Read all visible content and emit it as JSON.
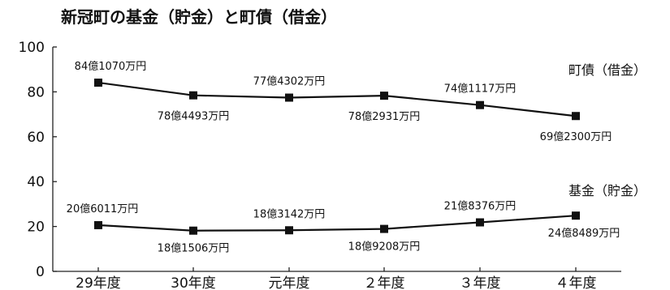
{
  "chart_data": {
    "type": "line",
    "title": "新冠町の基金（貯金）と町債（借金）",
    "categories": [
      "29年度",
      "30年度",
      "元年度",
      "２年度",
      "３年度",
      "４年度"
    ],
    "ylim": [
      0,
      100
    ],
    "yticks": [
      "0",
      "20",
      "40",
      "60",
      "80",
      "100"
    ],
    "grid": false,
    "series": [
      {
        "name": "町債（借金）",
        "values": [
          84.107,
          78.4493,
          77.4302,
          78.2931,
          74.1117,
          69.23
        ],
        "labels": [
          "84億1070万円",
          "78億4493万円",
          "77億4302万円",
          "78億2931万円",
          "74億1117万円",
          "69億2300万円"
        ]
      },
      {
        "name": "基金（貯金）",
        "values": [
          20.6011,
          18.1506,
          18.3142,
          18.9208,
          21.8376,
          24.8489
        ],
        "labels": [
          "20億6011万円",
          "18億1506万円",
          "18億3142万円",
          "18億9208万円",
          "21億8376万円",
          "24億8489万円"
        ]
      }
    ]
  }
}
